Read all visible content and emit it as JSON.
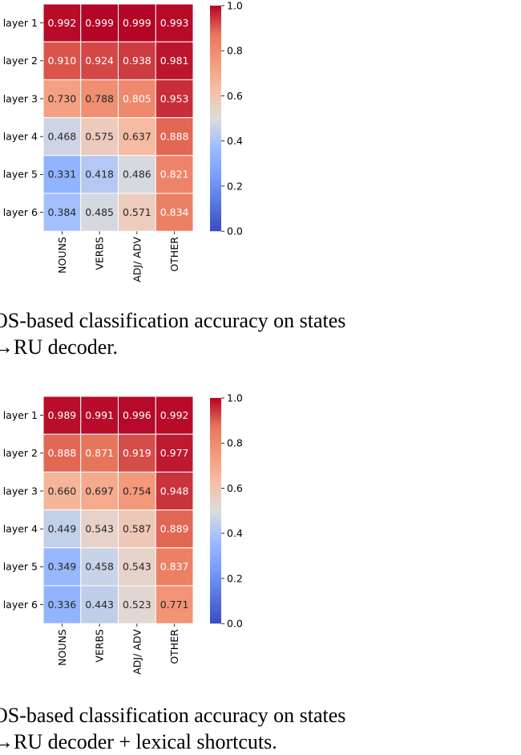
{
  "chart_data": [
    {
      "type": "heatmap",
      "rows": [
        "layer 1",
        "layer 2",
        "layer 3",
        "layer 4",
        "layer 5",
        "layer 6"
      ],
      "columns": [
        "NOUNS",
        "VERBS",
        "ADJ/ ADV",
        "OTHER"
      ],
      "values": [
        [
          0.992,
          0.999,
          0.999,
          0.993
        ],
        [
          0.91,
          0.924,
          0.938,
          0.981
        ],
        [
          0.73,
          0.788,
          0.805,
          0.953
        ],
        [
          0.468,
          0.575,
          0.637,
          0.888
        ],
        [
          0.331,
          0.418,
          0.486,
          0.821
        ],
        [
          0.384,
          0.485,
          0.571,
          0.834
        ]
      ],
      "value_format": "0.000",
      "colormap": "coolwarm",
      "vmin": 0.0,
      "vmax": 1.0,
      "colorbar_ticks": [
        0.0,
        0.2,
        0.4,
        0.6,
        0.8,
        1.0
      ],
      "colorbar_tick_labels": [
        "0.0",
        "0.2",
        "0.4",
        "0.6",
        "0.8",
        "1.0"
      ]
    },
    {
      "type": "heatmap",
      "rows": [
        "layer 1",
        "layer 2",
        "layer 3",
        "layer 4",
        "layer 5",
        "layer 6"
      ],
      "columns": [
        "NOUNS",
        "VERBS",
        "ADJ/ ADV",
        "OTHER"
      ],
      "values": [
        [
          0.989,
          0.991,
          0.996,
          0.992
        ],
        [
          0.888,
          0.871,
          0.919,
          0.977
        ],
        [
          0.66,
          0.697,
          0.754,
          0.948
        ],
        [
          0.449,
          0.543,
          0.587,
          0.889
        ],
        [
          0.349,
          0.458,
          0.543,
          0.837
        ],
        [
          0.336,
          0.443,
          0.523,
          0.771
        ]
      ],
      "value_format": "0.000",
      "colormap": "coolwarm",
      "vmin": 0.0,
      "vmax": 1.0,
      "colorbar_ticks": [
        0.0,
        0.2,
        0.4,
        0.6,
        0.8,
        1.0
      ],
      "colorbar_tick_labels": [
        "0.0",
        "0.2",
        "0.4",
        "0.6",
        "0.8",
        "1.0"
      ]
    }
  ],
  "captions": {
    "first": {
      "line1": "OS-based classification accuracy on states",
      "line2": "→RU decoder."
    },
    "second": {
      "line1": "OS-based classification accuracy on states",
      "line2": "→RU decoder + lexical shortcuts."
    }
  }
}
